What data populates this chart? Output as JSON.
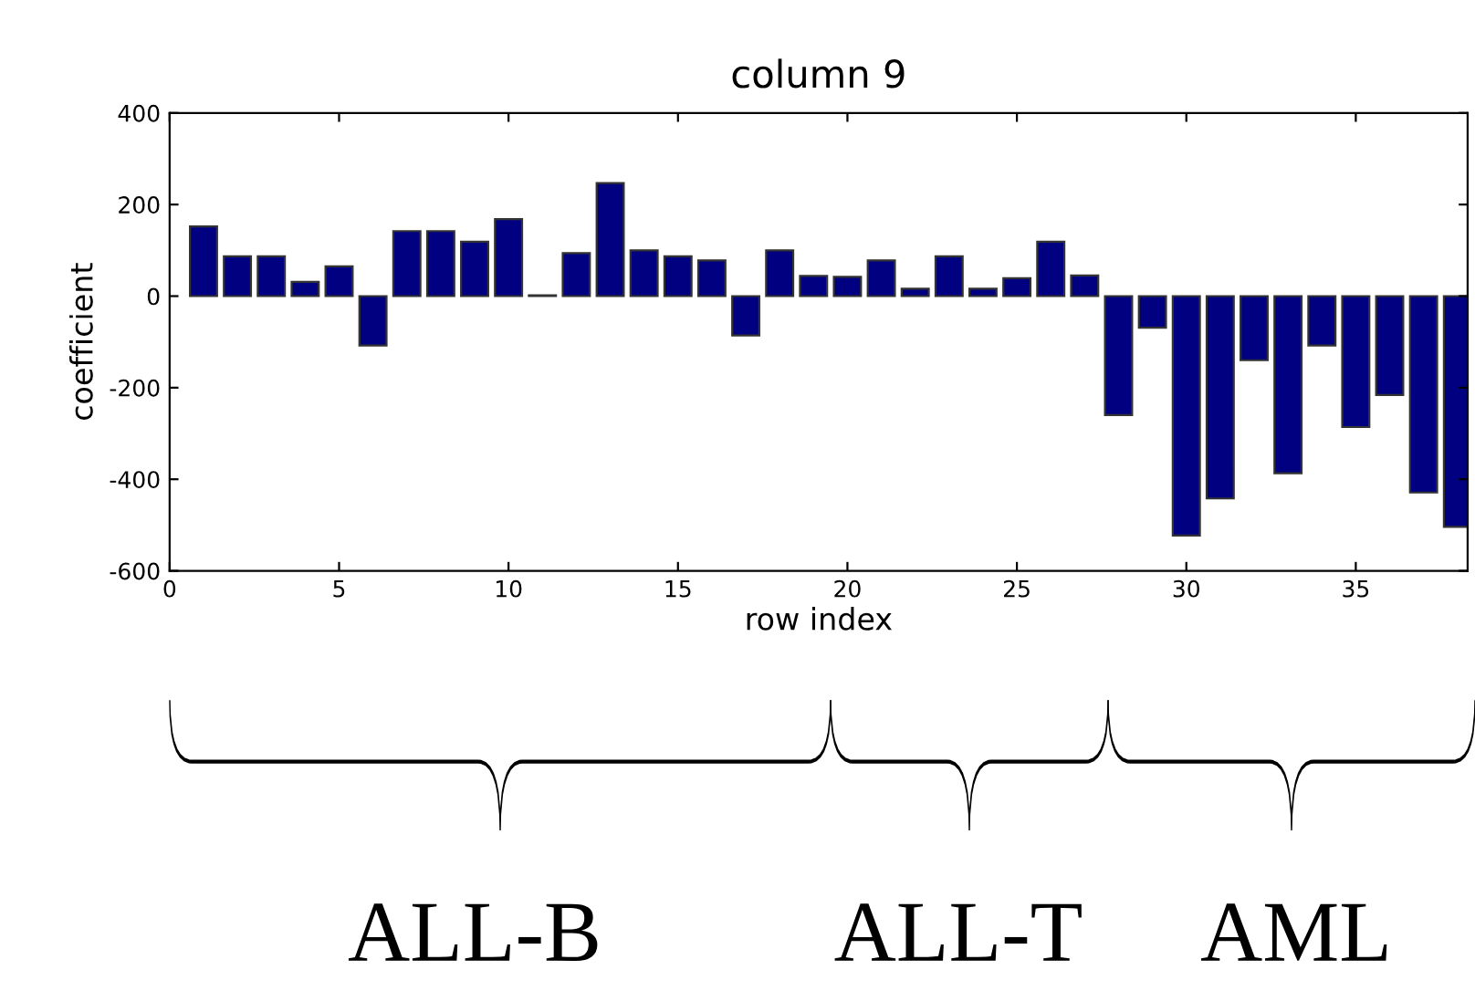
{
  "chart_data": {
    "type": "bar",
    "title": "column 9",
    "xlabel": "row index",
    "ylabel": "coefficient",
    "x": [
      1,
      2,
      3,
      4,
      5,
      6,
      7,
      8,
      9,
      10,
      11,
      12,
      13,
      14,
      15,
      16,
      17,
      18,
      19,
      20,
      21,
      22,
      23,
      24,
      25,
      26,
      27,
      28,
      29,
      30,
      31,
      32,
      33,
      34,
      35,
      36,
      37,
      38
    ],
    "values": [
      152,
      87,
      87,
      31,
      65,
      -108,
      142,
      142,
      119,
      168,
      2,
      94,
      247,
      100,
      87,
      78,
      -86,
      100,
      44,
      42,
      78,
      16,
      87,
      16,
      39,
      119,
      45,
      -260,
      -69,
      -523,
      -442,
      -140,
      -387,
      -108,
      -286,
      -216,
      -429,
      -504
    ],
    "color": "#000080",
    "xlim": [
      0,
      38.3
    ],
    "xticks": [
      0,
      5,
      10,
      15,
      20,
      25,
      30,
      35
    ],
    "ylim": [
      -600,
      400
    ],
    "yticks": [
      -600,
      -400,
      -200,
      0,
      200,
      400
    ],
    "grid": false,
    "annotations": [
      "ALL-B",
      "ALL-T",
      "AML"
    ]
  }
}
